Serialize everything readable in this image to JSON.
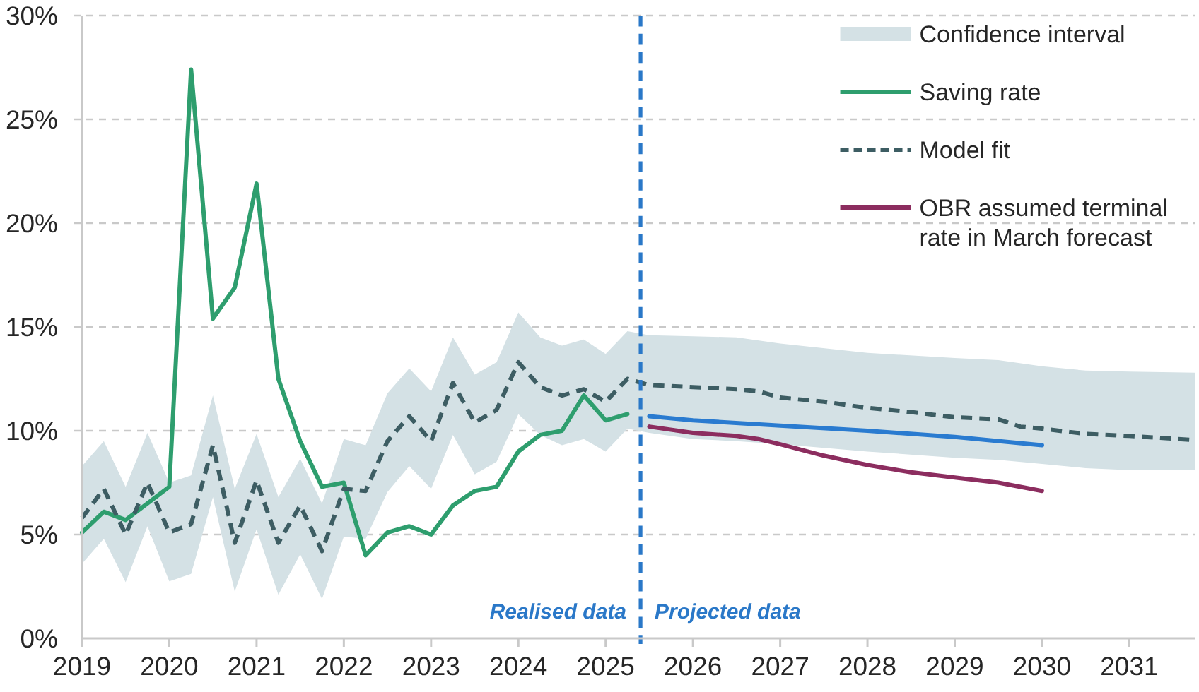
{
  "chart_data": {
    "type": "line",
    "xlim": [
      2019,
      2031.75
    ],
    "xticks": [
      2019,
      2020,
      2021,
      2022,
      2023,
      2024,
      2025,
      2026,
      2027,
      2028,
      2029,
      2030,
      2031
    ],
    "ylim": [
      0,
      30
    ],
    "yticks": [
      {
        "value": 0,
        "label": "0%"
      },
      {
        "value": 5,
        "label": "5%"
      },
      {
        "value": 10,
        "label": "10%"
      },
      {
        "value": 15,
        "label": "15%"
      },
      {
        "value": 20,
        "label": "20%"
      },
      {
        "value": 25,
        "label": "25%"
      },
      {
        "value": 30,
        "label": "30%"
      }
    ],
    "grid": "y",
    "legend": "top right",
    "series": [
      {
        "name": "Confidence interval",
        "type": "area",
        "color": "#d4e1e5",
        "x": [
          2019,
          2019.25,
          2019.5,
          2019.75,
          2020,
          2020.25,
          2020.5,
          2020.75,
          2021,
          2021.25,
          2021.5,
          2021.75,
          2022,
          2022.25,
          2022.5,
          2022.75,
          2023,
          2023.25,
          2023.5,
          2023.75,
          2024,
          2024.25,
          2024.5,
          2024.75,
          2025,
          2025.25,
          2025.5,
          2026,
          2026.5,
          2027,
          2028,
          2029,
          2029.5,
          2030,
          2030.5,
          2031,
          2031.75
        ],
        "values": [
          null,
          null,
          null,
          null,
          null,
          null,
          null,
          null,
          null,
          null,
          null,
          null,
          null,
          null,
          null,
          null,
          null,
          null,
          null,
          null,
          null,
          null,
          null,
          null,
          null,
          null,
          null,
          null,
          null,
          null,
          null,
          null,
          null,
          null,
          null,
          null,
          null
        ],
        "lower": [
          3.6,
          4.8,
          2.7,
          5.4,
          2.75,
          3.1,
          6.8,
          2.25,
          5.25,
          2.1,
          4.05,
          1.9,
          4.9,
          4.8,
          7.05,
          8.3,
          7.2,
          9.8,
          7.9,
          8.5,
          10.8,
          9.8,
          9.3,
          9.6,
          9.0,
          10.1,
          9.9,
          9.6,
          9.5,
          9.35,
          9.0,
          8.7,
          8.6,
          8.4,
          8.2,
          8.1,
          8.1
        ],
        "upper": [
          8.3,
          9.5,
          7.3,
          9.9,
          7.5,
          7.85,
          11.7,
          7.2,
          9.85,
          6.8,
          8.65,
          6.5,
          9.6,
          9.3,
          11.8,
          13.0,
          11.9,
          14.5,
          12.7,
          13.3,
          15.7,
          14.5,
          14.1,
          14.4,
          13.7,
          14.8,
          14.6,
          14.55,
          14.5,
          14.2,
          13.75,
          13.5,
          13.4,
          13.1,
          12.9,
          12.85,
          12.8
        ]
      },
      {
        "name": "Saving rate",
        "type": "line",
        "color": "#2e9e6e",
        "x": [
          2019,
          2019.25,
          2019.5,
          2019.75,
          2020,
          2020.25,
          2020.5,
          2020.75,
          2021,
          2021.25,
          2021.5,
          2021.75,
          2022,
          2022.25,
          2022.5,
          2022.75,
          2023,
          2023.25,
          2023.5,
          2023.75,
          2024,
          2024.25,
          2024.5,
          2024.75,
          2025,
          2025.25
        ],
        "values": [
          5.1,
          6.1,
          5.7,
          6.5,
          7.3,
          27.4,
          15.4,
          16.9,
          21.9,
          12.5,
          9.5,
          7.3,
          7.5,
          4.0,
          5.1,
          5.4,
          5.0,
          6.4,
          7.1,
          7.3,
          9.0,
          9.8,
          10.0,
          11.7,
          10.5,
          10.8
        ]
      },
      {
        "name": "Model fit",
        "type": "line",
        "color": "#3d5d63",
        "line_style": "dashed",
        "x": [
          2019,
          2019.25,
          2019.5,
          2019.75,
          2020,
          2020.25,
          2020.5,
          2020.75,
          2021,
          2021.25,
          2021.5,
          2021.75,
          2022,
          2022.25,
          2022.5,
          2022.75,
          2023,
          2023.25,
          2023.5,
          2023.75,
          2024,
          2024.25,
          2024.5,
          2024.75,
          2025,
          2025.25,
          2025.5,
          2026,
          2026.5,
          2026.75,
          2027,
          2027.5,
          2028,
          2028.5,
          2029,
          2029.5,
          2029.75,
          2030,
          2030.5,
          2031,
          2031.75
        ],
        "values": [
          5.8,
          7.2,
          5.0,
          7.5,
          5.1,
          5.5,
          9.3,
          4.6,
          7.6,
          4.6,
          6.4,
          4.2,
          7.2,
          7.1,
          9.5,
          10.7,
          9.5,
          12.3,
          10.4,
          11.0,
          13.3,
          12.1,
          11.7,
          12.0,
          11.4,
          12.5,
          12.2,
          12.1,
          12.0,
          11.9,
          11.6,
          11.4,
          11.1,
          10.9,
          10.65,
          10.55,
          10.2,
          10.1,
          9.85,
          9.75,
          9.55
        ]
      },
      {
        "type": "line",
        "color": "#2a7bd0",
        "x": [
          2025.5,
          2026,
          2027,
          2028,
          2029,
          2030
        ],
        "values": [
          10.7,
          10.5,
          10.25,
          10.0,
          9.7,
          9.3
        ]
      },
      {
        "name": "OBR assumed terminal rate in March forecast",
        "type": "line",
        "color": "#8c2d5f",
        "x": [
          2025.5,
          2026,
          2026.5,
          2026.75,
          2027,
          2027.5,
          2028,
          2028.5,
          2029,
          2029.5,
          2030
        ],
        "values": [
          10.2,
          9.9,
          9.75,
          9.6,
          9.35,
          8.8,
          8.35,
          8.0,
          7.75,
          7.5,
          7.1
        ]
      }
    ],
    "ref_lines": [
      {
        "axis": "x",
        "value": 2025.4,
        "label": null,
        "color": "#2a78c8",
        "line_style": "dashed"
      }
    ],
    "annotations": [
      "Realised data",
      "Projected data"
    ]
  }
}
